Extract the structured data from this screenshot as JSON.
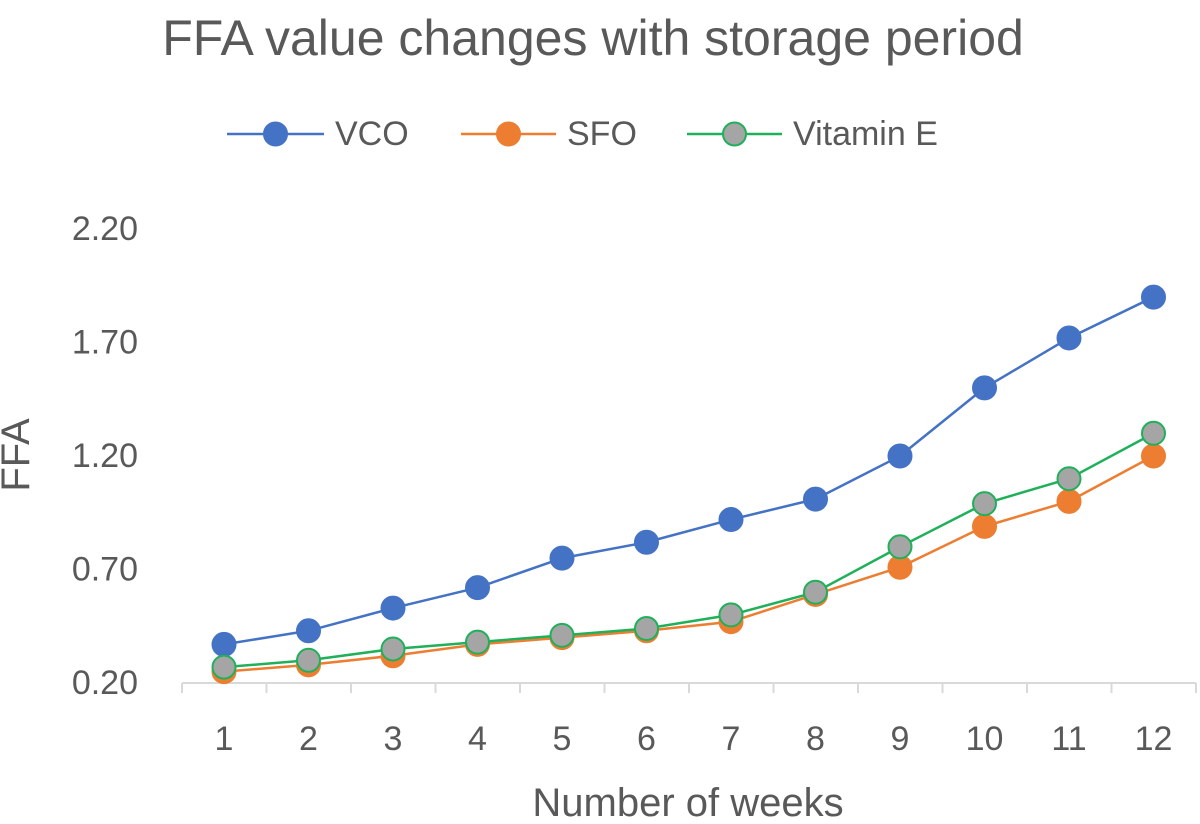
{
  "chart_data": {
    "type": "line",
    "title": "FFA value changes with storage period",
    "xlabel": "Number of weeks",
    "ylabel": "FFA",
    "categories": [
      "1",
      "2",
      "3",
      "4",
      "5",
      "6",
      "7",
      "8",
      "9",
      "10",
      "11",
      "12"
    ],
    "yticks": [
      "0.20",
      "0.70",
      "1.20",
      "1.70",
      "2.20"
    ],
    "ylim": [
      0.2,
      2.2
    ],
    "grid": false,
    "legend_position": "top",
    "series": [
      {
        "name": "VCO",
        "line_color": "#4472C4",
        "marker_fill": "#4472C4",
        "marker_stroke": "#4472C4",
        "values": [
          0.37,
          0.43,
          0.53,
          0.62,
          0.75,
          0.82,
          0.92,
          1.01,
          1.2,
          1.5,
          1.72,
          1.9
        ]
      },
      {
        "name": "SFO",
        "line_color": "#ED7D31",
        "marker_fill": "#ED7D31",
        "marker_stroke": "#ED7D31",
        "values": [
          0.25,
          0.28,
          0.32,
          0.37,
          0.4,
          0.43,
          0.47,
          0.59,
          0.71,
          0.89,
          1.0,
          1.2
        ]
      },
      {
        "name": "Vitamin E",
        "line_color": "#1FB05A",
        "marker_fill": "#A5A5A5",
        "marker_stroke": "#1FB05A",
        "values": [
          0.27,
          0.3,
          0.35,
          0.38,
          0.41,
          0.44,
          0.5,
          0.6,
          0.8,
          0.99,
          1.1,
          1.3
        ]
      }
    ],
    "axis_color": "#D9D9D9"
  }
}
